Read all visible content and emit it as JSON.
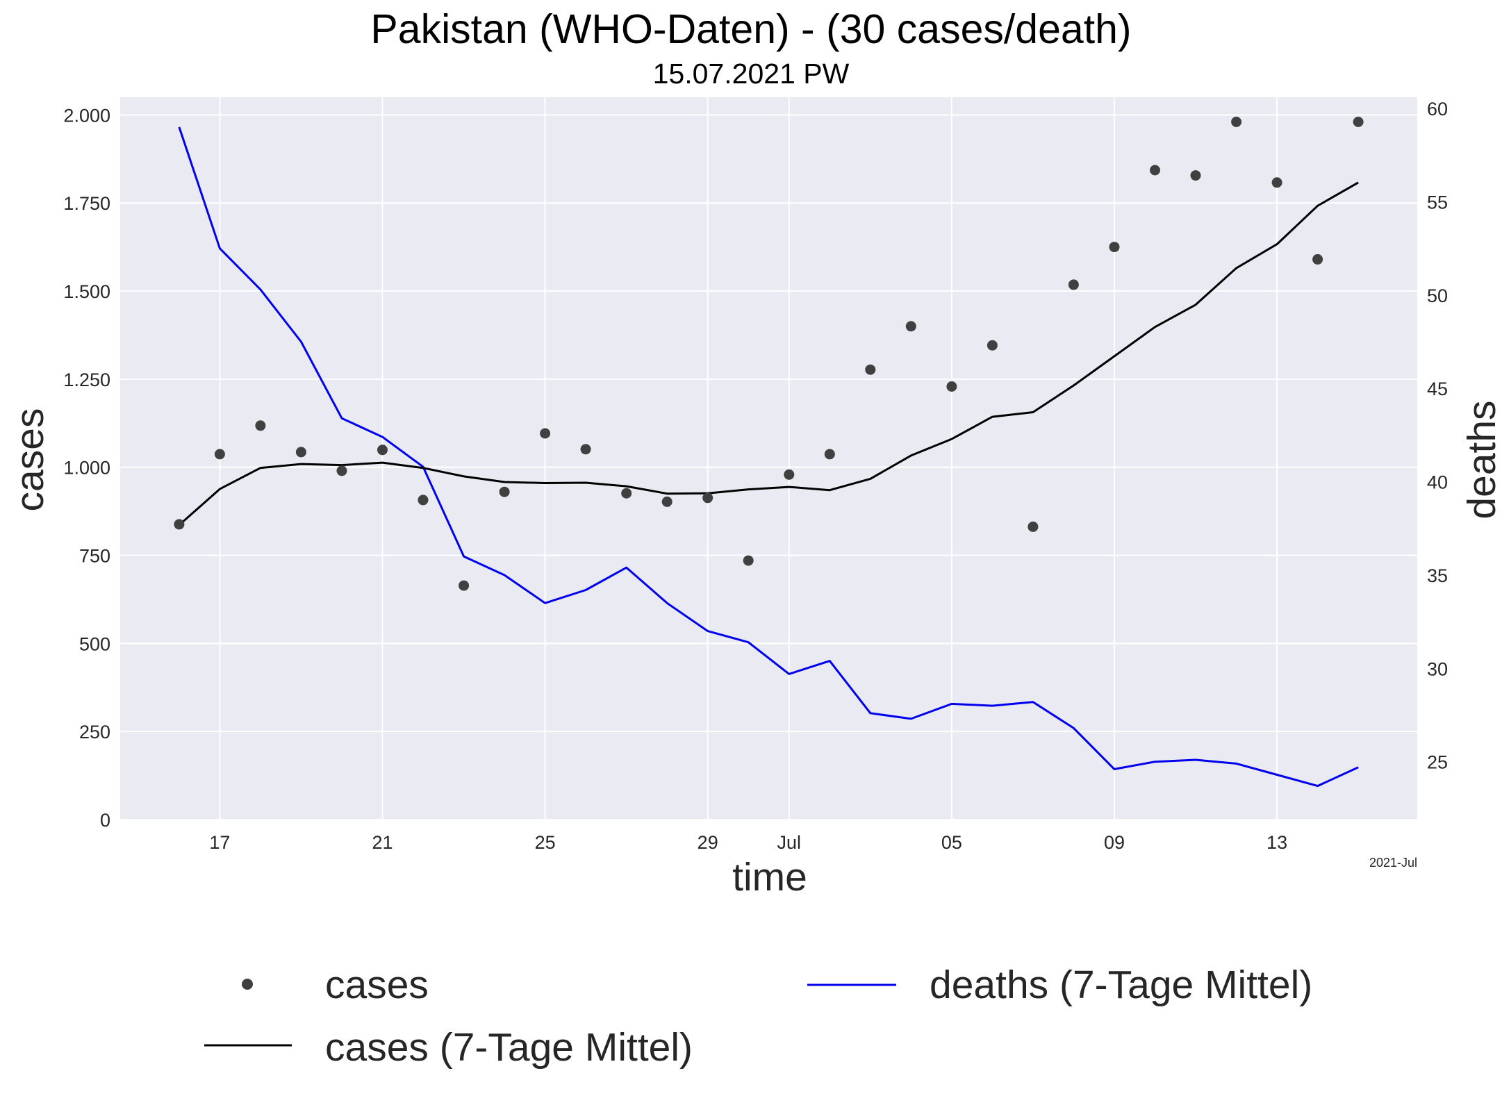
{
  "chart_data": {
    "type": "line",
    "title": "Pakistan (WHO-Daten) - (30 cases/death)",
    "subtitle": "15.07.2021 PW",
    "xlabel": "time",
    "ylabel": "cases",
    "y2label": "deaths",
    "x_offset_label": "2021-Jul",
    "x": [
      "2021-06-16",
      "2021-06-17",
      "2021-06-18",
      "2021-06-19",
      "2021-06-20",
      "2021-06-21",
      "2021-06-22",
      "2021-06-23",
      "2021-06-24",
      "2021-06-25",
      "2021-06-26",
      "2021-06-27",
      "2021-06-28",
      "2021-06-29",
      "2021-06-30",
      "2021-07-01",
      "2021-07-02",
      "2021-07-03",
      "2021-07-04",
      "2021-07-05",
      "2021-07-06",
      "2021-07-07",
      "2021-07-08",
      "2021-07-09",
      "2021-07-10",
      "2021-07-11",
      "2021-07-12",
      "2021-07-13",
      "2021-07-14",
      "2021-07-15"
    ],
    "xlim": [
      "2021-06-14.55",
      "2021-07-16.45"
    ],
    "ylim": [
      0,
      2050
    ],
    "y2lim": [
      21.9,
      60.6
    ],
    "x_ticks": [
      {
        "date": "2021-06-17",
        "label": "17"
      },
      {
        "date": "2021-06-21",
        "label": "21"
      },
      {
        "date": "2021-06-25",
        "label": "25"
      },
      {
        "date": "2021-06-29",
        "label": "29"
      },
      {
        "date": "2021-07-01",
        "label": "Jul"
      },
      {
        "date": "2021-07-05",
        "label": "05"
      },
      {
        "date": "2021-07-09",
        "label": "09"
      },
      {
        "date": "2021-07-13",
        "label": "13"
      }
    ],
    "y_ticks": [
      {
        "value": 0,
        "label": "0"
      },
      {
        "value": 250,
        "label": "250"
      },
      {
        "value": 500,
        "label": "500"
      },
      {
        "value": 750,
        "label": "750"
      },
      {
        "value": 1000,
        "label": "1.000"
      },
      {
        "value": 1250,
        "label": "1.250"
      },
      {
        "value": 1500,
        "label": "1.500"
      },
      {
        "value": 1750,
        "label": "1.750"
      },
      {
        "value": 2000,
        "label": "2.000"
      }
    ],
    "y2_ticks": [
      {
        "value": 25,
        "label": "25"
      },
      {
        "value": 30,
        "label": "30"
      },
      {
        "value": 35,
        "label": "35"
      },
      {
        "value": 40,
        "label": "40"
      },
      {
        "value": 45,
        "label": "45"
      },
      {
        "value": 50,
        "label": "50"
      },
      {
        "value": 55,
        "label": "55"
      },
      {
        "value": 60,
        "label": "60"
      }
    ],
    "grid": true,
    "legend_position": "bottom",
    "series": [
      {
        "name": "cases",
        "kind": "scatter",
        "axis": "left",
        "color": "#404040",
        "values": [
          838,
          1037,
          1118,
          1043,
          990,
          1049,
          907,
          664,
          930,
          1096,
          1051,
          926,
          902,
          913,
          735,
          979,
          1037,
          1277,
          1400,
          1229,
          1346,
          831,
          1518,
          1625,
          1843,
          1828,
          1980,
          1808,
          1590,
          1980
        ]
      },
      {
        "name": "cases (7-Tage Mittel)",
        "kind": "line",
        "axis": "left",
        "color": "#000000",
        "values": [
          836,
          938,
          998,
          1009,
          1006,
          1013,
          998,
          974,
          958,
          955,
          956,
          946,
          925,
          926,
          937,
          944,
          935,
          967,
          1033,
          1080,
          1143,
          1156,
          1232,
          1315,
          1398,
          1461,
          1565,
          1633,
          1742,
          1808
        ]
      },
      {
        "name": "deaths (7-Tage Mittel)",
        "kind": "line",
        "axis": "right",
        "color": "#0000ee",
        "values": [
          59.0,
          52.5,
          50.3,
          47.5,
          43.4,
          42.4,
          40.8,
          36.0,
          35.0,
          33.5,
          34.2,
          35.4,
          33.5,
          32.0,
          31.4,
          29.7,
          30.4,
          27.6,
          27.3,
          28.1,
          28.0,
          28.2,
          26.8,
          24.6,
          25.0,
          25.1,
          24.9,
          24.3,
          23.7,
          24.7
        ]
      }
    ]
  }
}
